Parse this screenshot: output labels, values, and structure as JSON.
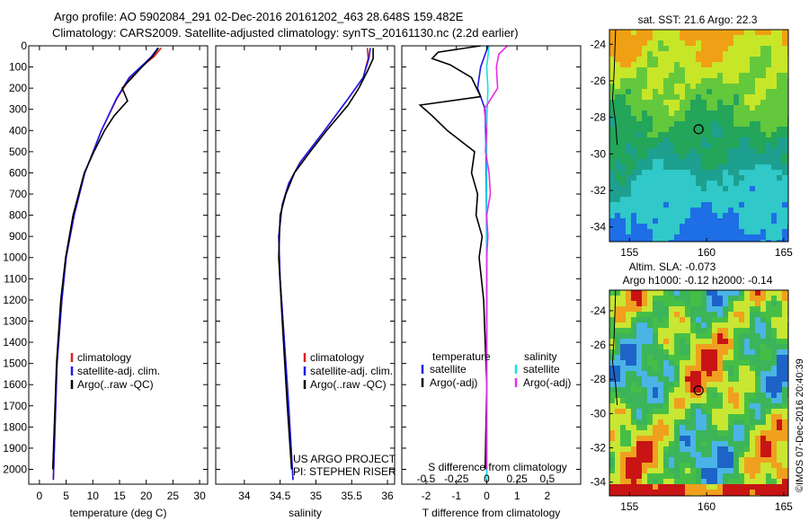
{
  "header": {
    "line1": "Argo profile: AO 5902084_291 02-Dec-2016 20161202_463 28.648S 159.482E",
    "line2": "Climatology: CARS2009. Satellite-adjusted climatology: synTS_20161130.nc (2.2d earlier)"
  },
  "watermark": "©IMOS 07-Dec-2016 20:40:39",
  "colors": {
    "red": "#e02020",
    "blue": "#1a1aee",
    "black": "#000000",
    "cyan": "#19e0e6",
    "magenta": "#e62ee6"
  },
  "chart_data": [
    {
      "id": "temperature",
      "type": "line",
      "xlabel": "temperature (deg C)",
      "ylabel": "",
      "xlim": [
        -2,
        31.5
      ],
      "ylim": [
        2070,
        0
      ],
      "xticks": [
        0,
        5,
        10,
        15,
        20,
        25,
        30
      ],
      "yticks": [
        0,
        100,
        200,
        300,
        400,
        500,
        600,
        700,
        800,
        900,
        1000,
        1100,
        1200,
        1300,
        1400,
        1500,
        1600,
        1700,
        1800,
        1900,
        2000
      ],
      "legend": [
        "climatology",
        "satellite-adj. clim.",
        "Argo(..raw -QC)"
      ],
      "series": [
        {
          "name": "climatology",
          "color": "red",
          "depth": [
            10,
            50,
            80,
            150,
            250,
            400,
            600,
            800,
            1000,
            1200,
            1500,
            2050
          ],
          "values": [
            22.8,
            21.5,
            20,
            17,
            14.5,
            11.6,
            8.5,
            6.5,
            5,
            4.2,
            3.3,
            2.6
          ]
        },
        {
          "name": "satellite-adj. clim.",
          "color": "blue",
          "depth": [
            10,
            50,
            80,
            150,
            250,
            400,
            600,
            800,
            1000,
            1200,
            1500,
            2050
          ],
          "values": [
            22.2,
            21,
            19.8,
            16.8,
            14.4,
            11.6,
            8.5,
            6.5,
            5,
            4.2,
            3.3,
            2.6
          ]
        },
        {
          "name": "Argo(..raw -QC)",
          "color": "black",
          "depth": [
            10,
            50,
            100,
            200,
            260,
            330,
            400,
            500,
            600,
            800,
            1000,
            1200,
            1500,
            2000
          ],
          "values": [
            22.3,
            21.2,
            19.2,
            15.5,
            16.5,
            14,
            12.2,
            10.2,
            8.4,
            6.3,
            4.9,
            4,
            3.2,
            2.5
          ]
        }
      ]
    },
    {
      "id": "salinity",
      "type": "line",
      "xlabel": "salinity",
      "ylabel": "",
      "xlim": [
        33.6,
        36.1
      ],
      "ylim": [
        2070,
        0
      ],
      "xticks": [
        34,
        34.5,
        35,
        35.5,
        36
      ],
      "xticklabels": [
        "34",
        "34.5",
        "35",
        "35.5",
        "36"
      ],
      "legend": [
        "climatology",
        "satellite-adj. clim.",
        "Argo(..raw -QC)"
      ],
      "annotation": [
        "US ARGO PROJECT",
        "PI: STEPHEN RISER"
      ],
      "series": [
        {
          "name": "climatology",
          "color": "red",
          "depth": [
            10,
            60,
            150,
            250,
            400,
            550,
            650,
            750,
            900,
            1100,
            1400,
            1700,
            2050
          ],
          "values": [
            35.72,
            35.73,
            35.66,
            35.45,
            35.12,
            34.78,
            34.62,
            34.53,
            34.48,
            34.5,
            34.56,
            34.62,
            34.68
          ]
        },
        {
          "name": "satellite-adj. clim.",
          "color": "blue",
          "depth": [
            10,
            60,
            150,
            250,
            400,
            550,
            650,
            750,
            900,
            1100,
            1400,
            1700,
            2050
          ],
          "values": [
            35.76,
            35.74,
            35.66,
            35.45,
            35.12,
            34.78,
            34.62,
            34.53,
            34.48,
            34.5,
            34.56,
            34.62,
            34.68
          ]
        },
        {
          "name": "Argo(..raw -QC)",
          "color": "black",
          "depth": [
            10,
            60,
            120,
            200,
            280,
            400,
            500,
            600,
            700,
            800,
            1000,
            1300,
            1700,
            2000
          ],
          "values": [
            35.8,
            35.8,
            35.72,
            35.6,
            35.45,
            35.15,
            34.92,
            34.7,
            34.58,
            34.5,
            34.48,
            34.53,
            34.6,
            34.66
          ]
        }
      ]
    },
    {
      "id": "difference",
      "type": "line",
      "xlabel": "T difference from climatology",
      "xlabel_top": "S difference from climatology",
      "xlim": [
        -2.8,
        3.1
      ],
      "ylim": [
        2070,
        0
      ],
      "xticks": [
        -2,
        -1,
        0,
        1,
        2
      ],
      "xticks_top": [
        "-0.5",
        "-0.25",
        "0",
        "0.25",
        "0.5"
      ],
      "legend_titles": [
        "temperature",
        "salinity"
      ],
      "legend": [
        "satellite",
        "Argo(-adj)",
        "satellite",
        "Argo(-adj)"
      ],
      "series": [
        {
          "name": "temperature satellite",
          "color": "blue",
          "depth": [
            0,
            40,
            100,
            200,
            300,
            500,
            1000,
            1500,
            2050
          ],
          "values": [
            0.05,
            -0.05,
            -0.2,
            -0.3,
            -0.05,
            -0.02,
            0,
            0,
            0
          ]
        },
        {
          "name": "temperature Argo(-adj)",
          "color": "black",
          "depth": [
            0,
            30,
            60,
            90,
            150,
            240,
            280,
            330,
            400,
            500,
            600,
            700,
            800,
            900,
            1000,
            1200,
            1400,
            1600,
            2000
          ],
          "values": [
            -0.2,
            -1.6,
            -1.8,
            -1.2,
            -0.5,
            -0.2,
            -2.2,
            -1.8,
            -1.3,
            -0.4,
            -0.5,
            -0.3,
            -0.35,
            -0.15,
            -0.25,
            -0.1,
            -0.05,
            0,
            -0.05
          ]
        },
        {
          "name": "salinity satellite",
          "color": "cyan",
          "depth": [
            0,
            50,
            100,
            200,
            400,
            800,
            1500,
            2050
          ],
          "values": [
            0.02,
            0.01,
            0,
            0.01,
            0,
            0,
            0,
            0
          ]
        },
        {
          "name": "salinity Argo(-adj)",
          "color": "magenta",
          "depth": [
            0,
            40,
            100,
            200,
            300,
            400,
            500,
            600,
            700,
            800,
            900,
            1000,
            1100,
            1200,
            1500,
            2000
          ],
          "values": [
            0.17,
            0.1,
            0.08,
            0.09,
            -0.02,
            0,
            -0.01,
            0.02,
            0.03,
            0,
            0.01,
            0,
            0,
            0,
            0,
            0
          ]
        }
      ]
    },
    {
      "id": "sst-map",
      "type": "heatmap",
      "title": "sat. SST: 21.6 Argo: 22.3",
      "xlim": [
        153.7,
        165.3
      ],
      "ylim": [
        -34.8,
        -23.2
      ],
      "xticks": [
        155,
        160,
        165
      ],
      "yticks": [
        -24,
        -26,
        -28,
        -30,
        -32,
        -34
      ],
      "argo_position": [
        159.482,
        -28.648
      ]
    },
    {
      "id": "sla-map",
      "type": "heatmap",
      "title": "Altim. SLA: -0.073",
      "subtitle": "Argo h1000: -0.12 h2000: -0.14",
      "xlim": [
        153.7,
        165.3
      ],
      "ylim": [
        -34.8,
        -22.8
      ],
      "xticks": [
        155,
        160,
        165
      ],
      "yticks": [
        -24,
        -26,
        -28,
        -30,
        -32,
        -34
      ],
      "argo_position": [
        159.482,
        -28.648
      ]
    }
  ]
}
